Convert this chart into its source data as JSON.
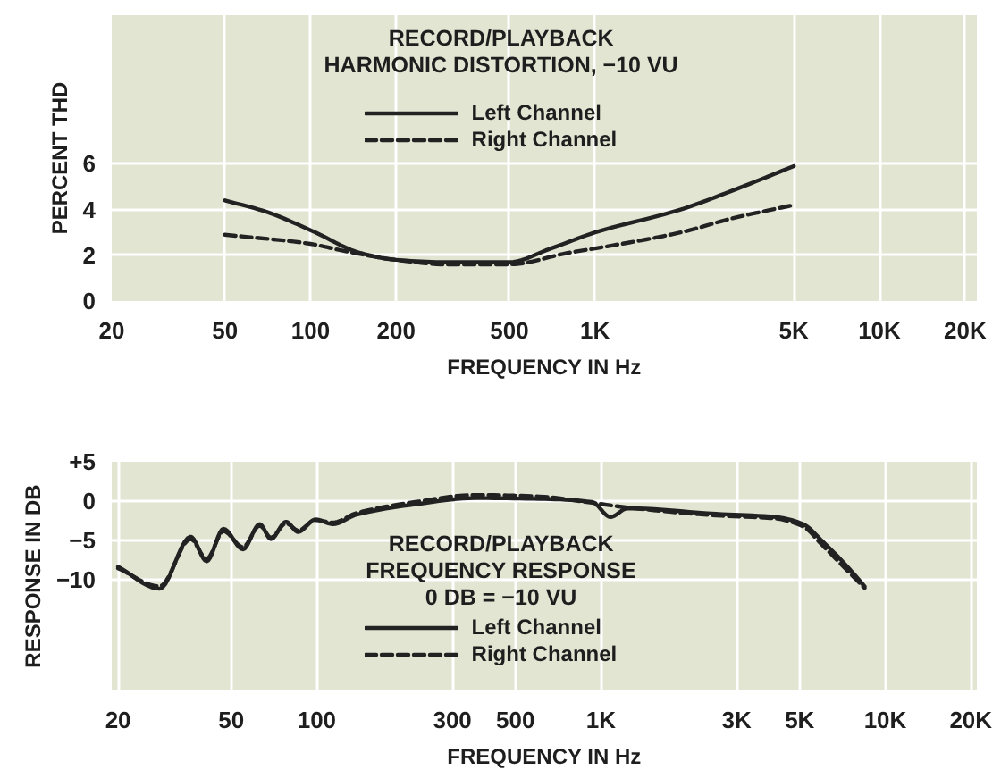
{
  "chart_data": [
    {
      "type": "line",
      "title": "RECORD/PLAYBACK HARMONIC DISTORTION, −10 VU",
      "xlabel": "FREQUENCY IN Hz",
      "ylabel": "PERCENT THD",
      "log": "x",
      "xlim": [
        20,
        22000
      ],
      "xticks": [
        20,
        50,
        100,
        200,
        500,
        {
          "value": 1000,
          "label": "1K"
        },
        {
          "value": 5000,
          "label": "5K"
        },
        {
          "value": 10000,
          "label": "10K"
        },
        {
          "value": 20000,
          "label": "20K"
        }
      ],
      "ylim": [
        0,
        12.5
      ],
      "yticks": [
        0,
        2,
        4,
        6
      ],
      "grid": true,
      "legend": "top",
      "series": [
        {
          "name": "Left Channel",
          "color": "#222222",
          "line_style": "solid",
          "x": [
            50,
            70,
            100,
            150,
            200,
            300,
            500,
            700,
            1000,
            2000,
            3000,
            5000
          ],
          "values": [
            4.4,
            3.9,
            3.1,
            2.1,
            1.8,
            1.7,
            1.7,
            2.3,
            3.0,
            4.0,
            4.8,
            5.9
          ]
        },
        {
          "name": "Right Channel",
          "color": "#222222",
          "line_style": "dashed",
          "x": [
            50,
            100,
            130,
            200,
            300,
            500,
            800,
            1000,
            2000,
            3000,
            5000
          ],
          "values": [
            2.9,
            2.5,
            2.2,
            1.8,
            1.6,
            1.6,
            2.1,
            2.3,
            3.0,
            3.6,
            4.2
          ]
        }
      ]
    },
    {
      "type": "line",
      "title": "RECORD/PLAYBACK FREQUENCY RESPONSE",
      "subtitle": "0 DB = −10 VU",
      "xlabel": "FREQUENCY IN Hz",
      "ylabel": "RESPONSE IN DB",
      "log": "x",
      "xlim": [
        19,
        21000
      ],
      "xticks": [
        20,
        50,
        100,
        300,
        500,
        {
          "value": 1000,
          "label": "1K"
        },
        {
          "value": 3000,
          "label": "3K"
        },
        {
          "value": 5000,
          "label": "5K"
        },
        {
          "value": 10000,
          "label": "10K"
        },
        {
          "value": 20000,
          "label": "20K"
        }
      ],
      "ylim": [
        -24,
        5
      ],
      "yticks": [
        {
          "value": 5,
          "label": "+5"
        },
        0,
        {
          "value": -5,
          "label": "−5"
        },
        {
          "value": -10,
          "label": "−10"
        }
      ],
      "grid": true,
      "legend": "bottom",
      "series": [
        {
          "name": "Left Channel",
          "color": "#222222",
          "line_style": "solid",
          "x": [
            20,
            28,
            36,
            41,
            47,
            55,
            63,
            69,
            78,
            86,
            99,
            114,
            138,
            222,
            360,
            606,
            930,
            1080,
            1240,
            2540,
            4130,
            5140,
            6020,
            7360,
            8460
          ],
          "values": [
            -8.3,
            -11.1,
            -4.5,
            -7.6,
            -3.5,
            -6.1,
            -2.9,
            -4.8,
            -2.6,
            -3.9,
            -2.3,
            -2.9,
            -1.7,
            -0.4,
            0.4,
            0.3,
            -0.1,
            -2.0,
            -0.9,
            -1.6,
            -2.0,
            -2.9,
            -5.1,
            -8.3,
            -10.8
          ]
        },
        {
          "name": "Right Channel",
          "color": "#222222",
          "line_style": "dashed",
          "x": [
            20,
            28,
            36,
            41,
            47,
            55,
            63,
            69,
            78,
            86,
            99,
            114,
            138,
            222,
            360,
            606,
            930,
            1240,
            2540,
            4130,
            5140,
            6020,
            7360,
            8460
          ],
          "values": [
            -8.5,
            -10.8,
            -4.8,
            -7.3,
            -3.8,
            -5.8,
            -3.1,
            -4.6,
            -2.8,
            -3.7,
            -2.4,
            -2.7,
            -1.5,
            -0.1,
            0.8,
            0.6,
            -0.2,
            -0.8,
            -1.8,
            -2.2,
            -3.2,
            -5.6,
            -8.8,
            -11.0
          ]
        }
      ]
    }
  ]
}
